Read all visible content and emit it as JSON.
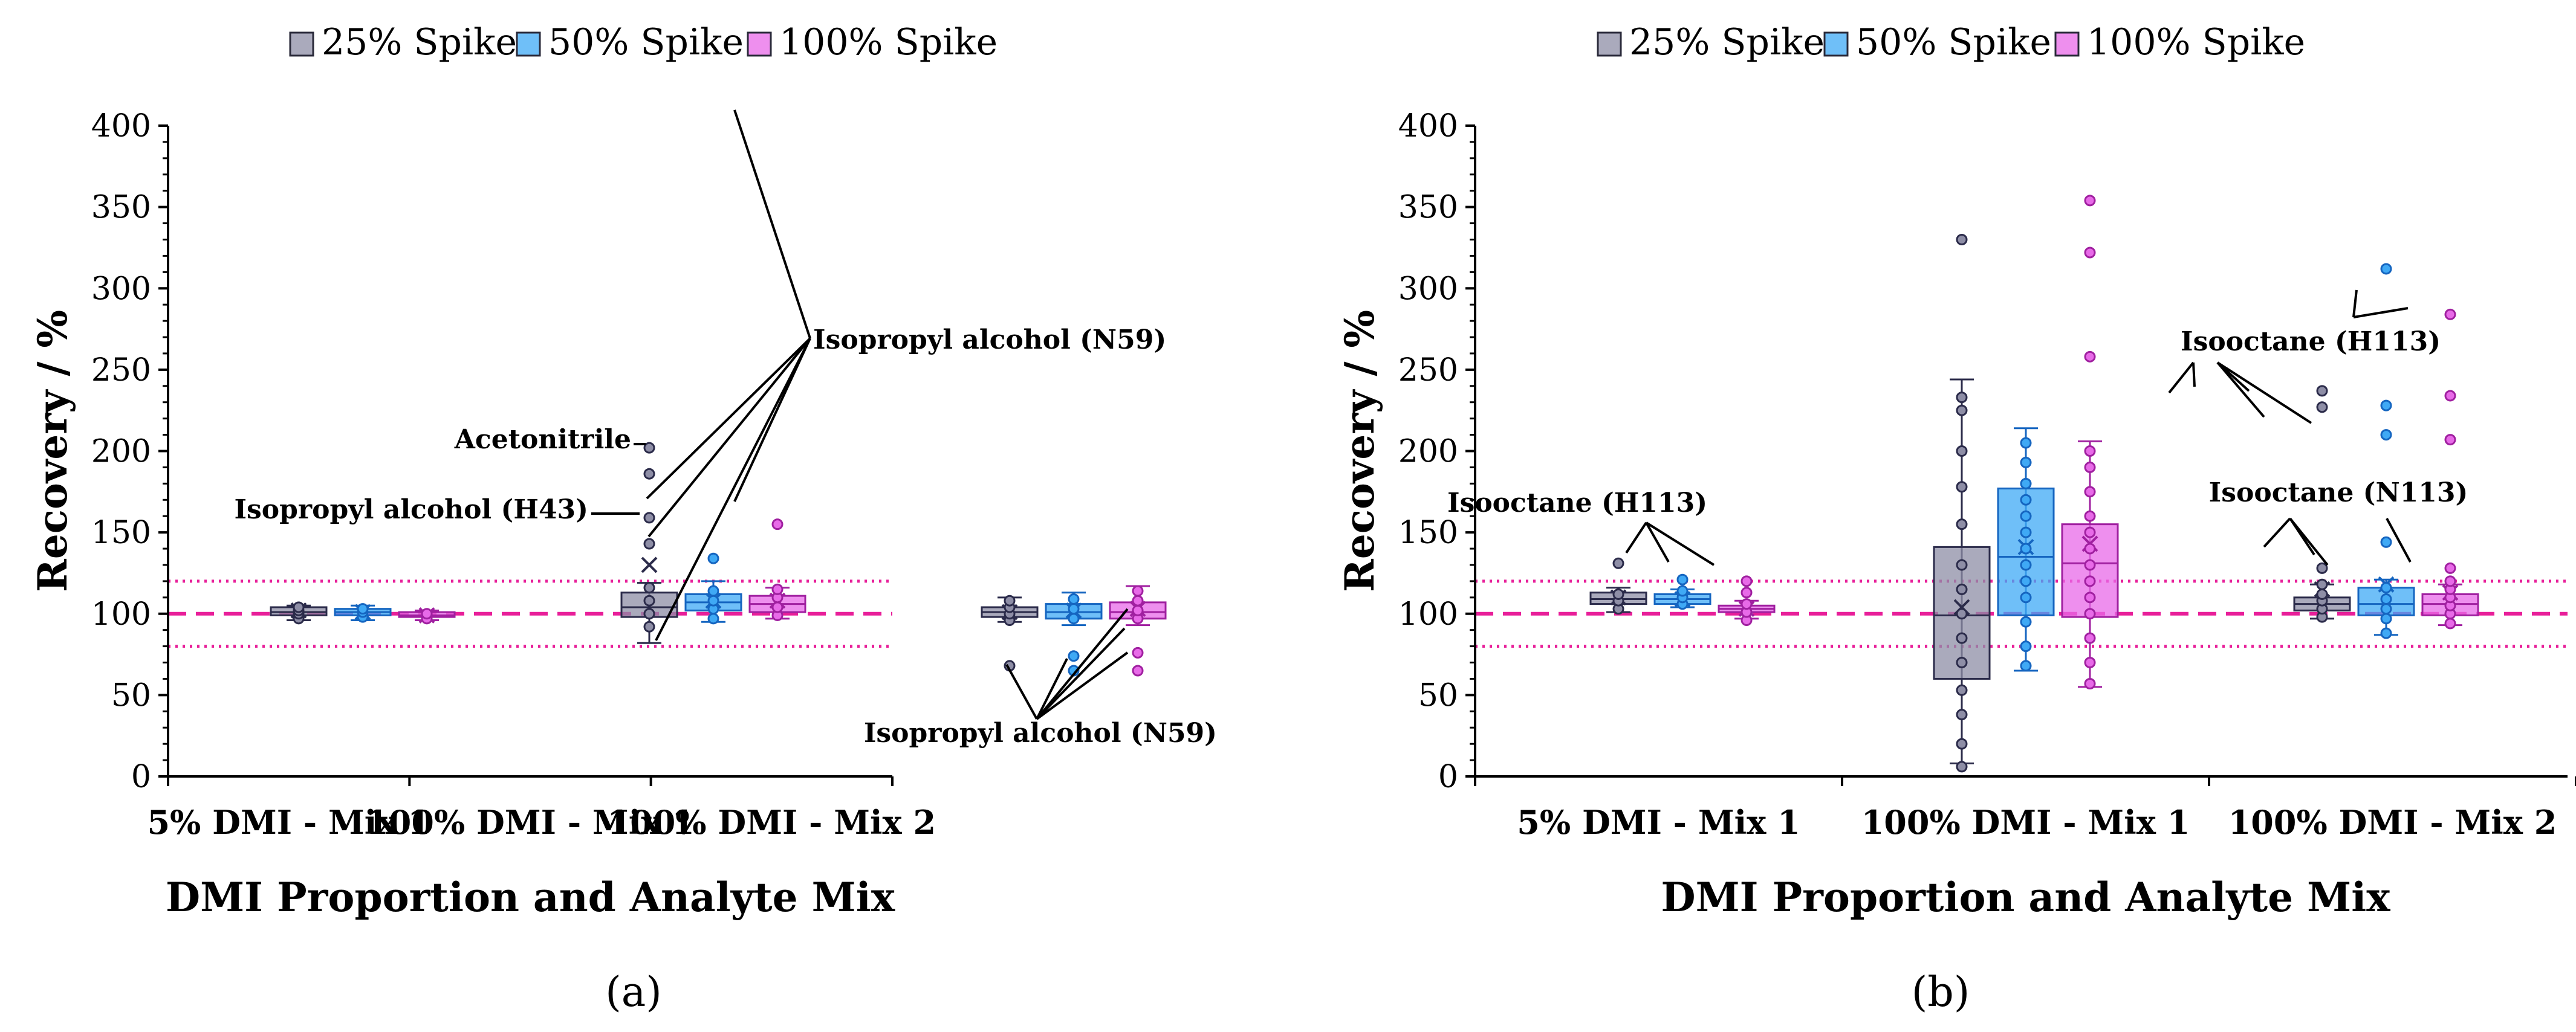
{
  "chart_data": [
    {
      "type": "box",
      "panel_label": "(a)",
      "xlabel": "DMI Proportion and Analyte Mix",
      "ylabel": "Recovery / %",
      "ylim": [
        0,
        400
      ],
      "yticks": [
        0,
        50,
        100,
        150,
        200,
        250,
        300,
        350,
        400
      ],
      "categories": [
        "5% DMI - Mix 1",
        "100% DMI - Mix 1",
        "100% DMI - Mix 2"
      ],
      "legend": [
        "25% Spike",
        "50% Spike",
        "100% Spike"
      ],
      "reference_lines": [
        {
          "value": 100,
          "style": "dashed"
        },
        {
          "value": 120,
          "style": "dotted"
        },
        {
          "value": 80,
          "style": "dotted"
        }
      ],
      "series": [
        {
          "name": "25% Spike",
          "color": "#8e8ea6",
          "boxes": [
            {
              "category": "5% DMI - Mix 1",
              "whisker_low": 96,
              "q1": 99,
              "median": 101,
              "q3": 104,
              "whisker_high": 105,
              "mean": 102,
              "points": [
                97,
                100,
                102,
                104
              ]
            },
            {
              "category": "100% DMI - Mix 1",
              "whisker_low": 82,
              "q1": 98,
              "median": 104,
              "q3": 113,
              "whisker_high": 119,
              "mean": 130,
              "points": [
                92,
                100,
                108,
                116,
                143,
                159,
                186,
                202
              ]
            },
            {
              "category": "100% DMI - Mix 2",
              "whisker_low": 95,
              "q1": 98,
              "median": 101,
              "q3": 104,
              "whisker_high": 110,
              "mean": 101,
              "points": [
                68,
                96,
                100,
                104,
                108
              ]
            }
          ]
        },
        {
          "name": "50% Spike",
          "color": "#3fa9f5",
          "boxes": [
            {
              "category": "5% DMI - Mix 1",
              "whisker_low": 96,
              "q1": 99,
              "median": 101,
              "q3": 103,
              "whisker_high": 105,
              "mean": 101,
              "points": [
                98,
                101,
                103
              ]
            },
            {
              "category": "100% DMI - Mix 1",
              "whisker_low": 95,
              "q1": 102,
              "median": 107,
              "q3": 112,
              "whisker_high": 120,
              "mean": 108,
              "points": [
                97,
                103,
                108,
                114,
                134
              ]
            },
            {
              "category": "100% DMI - Mix 2",
              "whisker_low": 93,
              "q1": 97,
              "median": 101,
              "q3": 106,
              "whisker_high": 113,
              "mean": 102,
              "points": [
                65,
                74,
                97,
                103,
                109
              ]
            }
          ]
        },
        {
          "name": "100% Spike",
          "color": "#e86ae8",
          "boxes": [
            {
              "category": "5% DMI - Mix 1",
              "whisker_low": 96,
              "q1": 98,
              "median": 99,
              "q3": 101,
              "whisker_high": 102,
              "mean": 99,
              "points": [
                97,
                100
              ]
            },
            {
              "category": "100% DMI - Mix 1",
              "whisker_low": 97,
              "q1": 101,
              "median": 106,
              "q3": 111,
              "whisker_high": 116,
              "mean": 108,
              "points": [
                99,
                104,
                110,
                115,
                155
              ]
            },
            {
              "category": "100% DMI - Mix 2",
              "whisker_low": 93,
              "q1": 97,
              "median": 101,
              "q3": 107,
              "whisker_high": 117,
              "mean": 103,
              "points": [
                65,
                76,
                97,
                102,
                108,
                114
              ]
            }
          ]
        }
      ],
      "annotations": [
        "Isopropyl alcohol (N59)",
        "Acetonitrile",
        "Isopropyl alcohol (H43)",
        "Isopropyl alcohol (N59)"
      ]
    },
    {
      "type": "box",
      "panel_label": "(b)",
      "xlabel": "DMI Proportion and Analyte Mix",
      "ylabel": "Recovery / %",
      "ylim": [
        0,
        400
      ],
      "yticks": [
        0,
        50,
        100,
        150,
        200,
        250,
        300,
        350,
        400
      ],
      "categories": [
        "5% DMI - Mix 1",
        "100% DMI - Mix 1",
        "100% DMI - Mix 2"
      ],
      "legend": [
        "25% Spike",
        "50% Spike",
        "100% Spike"
      ],
      "reference_lines": [
        {
          "value": 100,
          "style": "dashed"
        },
        {
          "value": 120,
          "style": "dotted"
        },
        {
          "value": 80,
          "style": "dotted"
        }
      ],
      "series": [
        {
          "name": "25% Spike",
          "color": "#8e8ea6",
          "boxes": [
            {
              "category": "5% DMI - Mix 1",
              "whisker_low": 101,
              "q1": 106,
              "median": 109,
              "q3": 113,
              "whisker_high": 116,
              "mean": 110,
              "points": [
                103,
                108,
                112,
                131
              ]
            },
            {
              "category": "100% DMI - Mix 1",
              "whisker_low": 8,
              "q1": 60,
              "median": 99,
              "q3": 141,
              "whisker_high": 244,
              "mean": 104,
              "points": [
                6,
                20,
                38,
                53,
                70,
                85,
                100,
                115,
                130,
                155,
                178,
                200,
                225,
                233,
                330
              ]
            },
            {
              "category": "100% DMI - Mix 2",
              "whisker_low": 97,
              "q1": 102,
              "median": 106,
              "q3": 110,
              "whisker_high": 118,
              "mean": 115,
              "points": [
                98,
                103,
                108,
                112,
                118,
                128,
                227,
                237
              ]
            }
          ]
        },
        {
          "name": "50% Spike",
          "color": "#3fa9f5",
          "boxes": [
            {
              "category": "5% DMI - Mix 1",
              "whisker_low": 104,
              "q1": 106,
              "median": 109,
              "q3": 112,
              "whisker_high": 115,
              "mean": 109,
              "points": [
                106,
                110,
                114,
                121
              ]
            },
            {
              "category": "100% DMI - Mix 1",
              "whisker_low": 65,
              "q1": 99,
              "median": 135,
              "q3": 177,
              "whisker_high": 214,
              "mean": 141,
              "points": [
                68,
                80,
                95,
                110,
                120,
                130,
                140,
                150,
                160,
                170,
                180,
                193,
                205
              ]
            },
            {
              "category": "100% DMI - Mix 2",
              "whisker_low": 87,
              "q1": 99,
              "median": 106,
              "q3": 116,
              "whisker_high": 121,
              "mean": 118,
              "points": [
                88,
                97,
                103,
                109,
                116,
                144,
                210,
                228,
                312
              ]
            }
          ]
        },
        {
          "name": "100% Spike",
          "color": "#e86ae8",
          "boxes": [
            {
              "category": "5% DMI - Mix 1",
              "whisker_low": 97,
              "q1": 101,
              "median": 103,
              "q3": 105,
              "whisker_high": 108,
              "mean": 103,
              "points": [
                96,
                101,
                106,
                113,
                120
              ]
            },
            {
              "category": "100% DMI - Mix 1",
              "whisker_low": 55,
              "q1": 98,
              "median": 131,
              "q3": 155,
              "whisker_high": 206,
              "mean": 143,
              "points": [
                57,
                70,
                85,
                100,
                110,
                120,
                130,
                140,
                150,
                160,
                175,
                190,
                200,
                258,
                322,
                354
              ]
            },
            {
              "category": "100% DMI - Mix 2",
              "whisker_low": 93,
              "q1": 99,
              "median": 106,
              "q3": 112,
              "whisker_high": 118,
              "mean": 113,
              "points": [
                94,
                100,
                105,
                110,
                115,
                120,
                128,
                207,
                234,
                284
              ]
            }
          ]
        }
      ],
      "annotations": [
        "Isooctane (H113)",
        "Isooctane (H113)",
        "Isooctane (N113)"
      ]
    }
  ]
}
